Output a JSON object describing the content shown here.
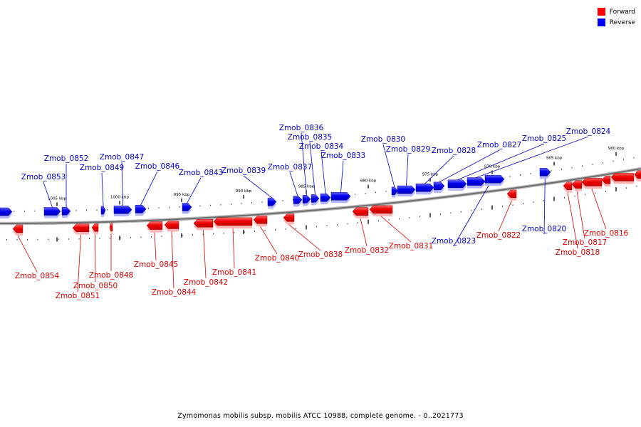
{
  "legend": [
    {
      "label": "Forward",
      "color": "#ff0000"
    },
    {
      "label": "Reverse",
      "color": "#0000ff"
    }
  ],
  "caption": "Zymomonas mobilis subsp. mobilis ATCC 10988, complete genome. - 0..2021773",
  "scale_labels": [
    {
      "text": "1005 kbp",
      "kbp": 1005
    },
    {
      "text": "1000 kbp",
      "kbp": 1000
    },
    {
      "text": "995 kbp",
      "kbp": 995
    },
    {
      "text": "990 kbp",
      "kbp": 990
    },
    {
      "text": "985 kbp",
      "kbp": 985
    },
    {
      "text": "980 kbp",
      "kbp": 980
    },
    {
      "text": "975 kbp",
      "kbp": 975
    },
    {
      "text": "970 kbp",
      "kbp": 970
    },
    {
      "text": "965 kbp",
      "kbp": 965
    },
    {
      "text": "960 kbp",
      "kbp": 960
    }
  ],
  "genes": [
    {
      "name": "Zmob_0854",
      "strand": "forward"
    },
    {
      "name": "Zmob_0853",
      "strand": "reverse"
    },
    {
      "name": "Zmob_0852",
      "strand": "reverse"
    },
    {
      "name": "Zmob_0851",
      "strand": "forward"
    },
    {
      "name": "Zmob_0850",
      "strand": "forward"
    },
    {
      "name": "Zmob_0849",
      "strand": "reverse"
    },
    {
      "name": "Zmob_0848",
      "strand": "forward"
    },
    {
      "name": "Zmob_0847",
      "strand": "reverse"
    },
    {
      "name": "Zmob_0846",
      "strand": "reverse"
    },
    {
      "name": "Zmob_0845",
      "strand": "forward"
    },
    {
      "name": "Zmob_0844",
      "strand": "forward"
    },
    {
      "name": "Zmob_0843",
      "strand": "reverse"
    },
    {
      "name": "Zmob_0842",
      "strand": "forward"
    },
    {
      "name": "Zmob_0841",
      "strand": "forward"
    },
    {
      "name": "Zmob_0840",
      "strand": "forward"
    },
    {
      "name": "Zmob_0839",
      "strand": "reverse"
    },
    {
      "name": "Zmob_0838",
      "strand": "forward"
    },
    {
      "name": "Zmob_0837",
      "strand": "reverse"
    },
    {
      "name": "Zmob_0836",
      "strand": "reverse"
    },
    {
      "name": "Zmob_0835",
      "strand": "reverse"
    },
    {
      "name": "Zmob_0834",
      "strand": "reverse"
    },
    {
      "name": "Zmob_0833",
      "strand": "reverse"
    },
    {
      "name": "Zmob_0832",
      "strand": "forward"
    },
    {
      "name": "Zmob_0831",
      "strand": "forward"
    },
    {
      "name": "Zmob_0830",
      "strand": "reverse"
    },
    {
      "name": "Zmob_0829",
      "strand": "reverse"
    },
    {
      "name": "Zmob_0828",
      "strand": "reverse"
    },
    {
      "name": "Zmob_0827",
      "strand": "reverse"
    },
    {
      "name": "Zmob_0825",
      "strand": "reverse"
    },
    {
      "name": "Zmob_0824",
      "strand": "reverse"
    },
    {
      "name": "Zmob_0823",
      "strand": "reverse"
    },
    {
      "name": "Zmob_0822",
      "strand": "forward"
    },
    {
      "name": "Zmob_0820",
      "strand": "reverse"
    },
    {
      "name": "Zmob_0818",
      "strand": "forward"
    },
    {
      "name": "Zmob_0817",
      "strand": "forward"
    },
    {
      "name": "Zmob_0816",
      "strand": "forward"
    }
  ]
}
